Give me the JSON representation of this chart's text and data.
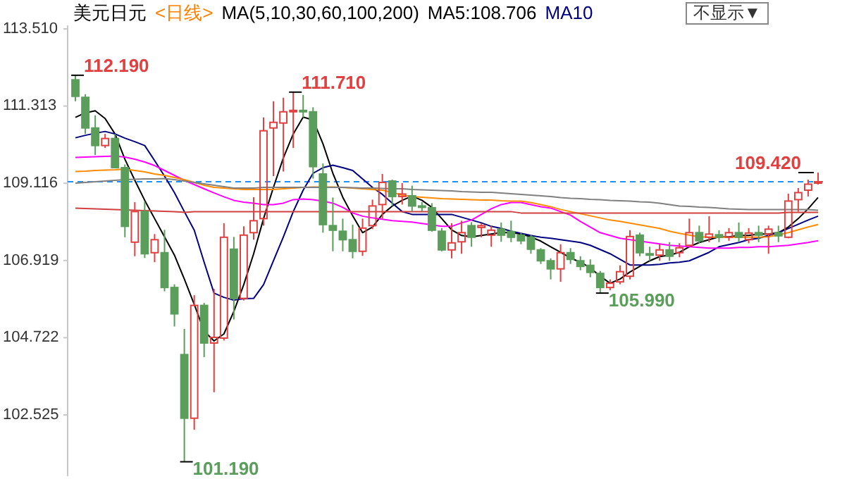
{
  "chart_data": {
    "type": "candlestick",
    "title": "美元日元",
    "subtitle": "<日线>",
    "annotations": [
      "MA(5,10,30,60,100,200)",
      "不显示▼"
    ],
    "value_labels": [
      "112.190",
      null,
      null,
      null,
      null,
      null,
      null,
      null,
      null,
      null,
      null,
      "101.190",
      null,
      null,
      null,
      null,
      null,
      null,
      null,
      null,
      null,
      null,
      "111.710",
      null,
      null,
      null,
      null,
      null,
      null,
      null,
      null,
      null,
      null,
      null,
      null,
      null,
      null,
      null,
      null,
      null,
      null,
      null,
      null,
      null,
      null,
      null,
      null,
      null,
      null,
      null,
      null,
      null,
      null,
      "105.990",
      null,
      null,
      null,
      null,
      null,
      null,
      null,
      null,
      null,
      null,
      null,
      null,
      null,
      null,
      null,
      null,
      null,
      null,
      null,
      null,
      null,
      "109.420"
    ],
    "categories": [
      null,
      null,
      null,
      null,
      null,
      null,
      null,
      null,
      null,
      null,
      null,
      null,
      null,
      null,
      null,
      null,
      null,
      null,
      null,
      null,
      null,
      null,
      null,
      null,
      null,
      null,
      null,
      null,
      null,
      null,
      null,
      null,
      null,
      null,
      null,
      null,
      null,
      null,
      null,
      null,
      null,
      null,
      null,
      null,
      null,
      null,
      null,
      null,
      null,
      null,
      null,
      null,
      null,
      null,
      null,
      null,
      null,
      null,
      null,
      null,
      null,
      null,
      null,
      null,
      null,
      null,
      null,
      null,
      null,
      null,
      null,
      null,
      null,
      null,
      null,
      null
    ],
    "ohlc": [
      [
        112.06,
        112.19,
        111.45,
        111.59
      ],
      [
        111.56,
        111.65,
        110.52,
        110.69
      ],
      [
        110.69,
        111.05,
        109.92,
        110.19
      ],
      [
        110.19,
        110.52,
        110.12,
        110.39
      ],
      [
        110.39,
        110.52,
        109.56,
        109.56
      ],
      [
        109.56,
        109.65,
        107.58,
        107.89
      ],
      [
        107.44,
        108.58,
        107.04,
        108.31
      ],
      [
        108.31,
        108.59,
        106.99,
        107.11
      ],
      [
        107.14,
        107.67,
        106.87,
        107.51
      ],
      [
        107.14,
        107.79,
        106.04,
        106.15
      ],
      [
        106.15,
        106.24,
        105.04,
        105.4
      ],
      [
        104.24,
        104.97,
        101.19,
        102.43
      ],
      [
        102.43,
        105.93,
        102.1,
        105.64
      ],
      [
        105.64,
        105.71,
        104.17,
        104.57
      ],
      [
        104.57,
        106.11,
        103.17,
        104.73
      ],
      [
        104.71,
        107.98,
        104.64,
        107.58
      ],
      [
        107.24,
        107.59,
        105.24,
        105.84
      ],
      [
        105.84,
        107.89,
        105.78,
        107.64
      ],
      [
        107.71,
        108.72,
        107.51,
        108.05
      ],
      [
        108.11,
        110.99,
        107.91,
        110.61
      ],
      [
        110.69,
        111.45,
        109.32,
        110.85
      ],
      [
        110.83,
        111.55,
        109.45,
        111.15
      ],
      [
        111.15,
        111.71,
        110.12,
        111.19
      ],
      [
        111.19,
        111.63,
        110.99,
        111.15
      ],
      [
        111.15,
        111.28,
        109.25,
        109.59
      ],
      [
        109.38,
        109.68,
        107.71,
        107.94
      ],
      [
        107.91,
        108.71,
        107.18,
        107.78
      ],
      [
        107.75,
        108.11,
        107.18,
        107.51
      ],
      [
        107.51,
        107.94,
        106.98,
        107.18
      ],
      [
        107.18,
        108.11,
        107.05,
        107.84
      ],
      [
        107.91,
        108.65,
        107.81,
        108.47
      ],
      [
        108.51,
        109.38,
        108.11,
        109.14
      ],
      [
        109.18,
        109.22,
        108.47,
        108.74
      ],
      [
        108.74,
        109.12,
        108.51,
        108.81
      ],
      [
        108.76,
        109.05,
        108.31,
        108.47
      ],
      [
        108.47,
        108.58,
        108.31,
        108.44
      ],
      [
        108.42,
        108.55,
        107.74,
        107.78
      ],
      [
        107.75,
        107.84,
        107.18,
        107.22
      ],
      [
        107.22,
        107.98,
        106.98,
        107.42
      ],
      [
        107.45,
        108.05,
        107.11,
        107.71
      ],
      [
        107.91,
        108.01,
        107.31,
        107.58
      ],
      [
        107.86,
        107.98,
        107.58,
        107.91
      ],
      [
        107.64,
        107.91,
        107.31,
        107.78
      ],
      [
        107.81,
        108.0,
        107.45,
        107.64
      ],
      [
        107.74,
        108.05,
        107.44,
        107.58
      ],
      [
        107.64,
        107.71,
        107.38,
        107.48
      ],
      [
        107.58,
        107.64,
        107.11,
        107.24
      ],
      [
        107.22,
        107.27,
        106.82,
        106.91
      ],
      [
        106.91,
        106.98,
        106.38,
        106.68
      ],
      [
        106.68,
        107.38,
        106.31,
        107.14
      ],
      [
        107.14,
        107.27,
        106.82,
        106.95
      ],
      [
        106.91,
        107.04,
        106.64,
        106.75
      ],
      [
        106.78,
        106.95,
        106.44,
        106.58
      ],
      [
        106.55,
        106.62,
        105.99,
        106.15
      ],
      [
        106.15,
        106.38,
        106.07,
        106.27
      ],
      [
        106.31,
        106.78,
        106.24,
        106.6
      ],
      [
        106.47,
        107.78,
        106.38,
        107.6
      ],
      [
        107.64,
        107.71,
        107.04,
        107.14
      ],
      [
        107.11,
        107.31,
        106.91,
        107.07
      ],
      [
        107.07,
        107.38,
        106.91,
        107.22
      ],
      [
        107.22,
        107.44,
        106.91,
        107.04
      ],
      [
        107.14,
        107.41,
        107.01,
        107.28
      ],
      [
        107.35,
        108.11,
        107.31,
        107.71
      ],
      [
        107.71,
        107.91,
        107.41,
        107.48
      ],
      [
        107.58,
        108.18,
        107.44,
        107.67
      ],
      [
        107.65,
        107.78,
        107.44,
        107.58
      ],
      [
        107.58,
        107.84,
        107.48,
        107.71
      ],
      [
        107.71,
        108.0,
        107.44,
        107.58
      ],
      [
        107.51,
        107.84,
        107.41,
        107.7
      ],
      [
        107.71,
        107.91,
        107.44,
        107.64
      ],
      [
        107.67,
        107.91,
        107.11,
        107.81
      ],
      [
        107.71,
        107.91,
        107.44,
        107.62
      ],
      [
        107.58,
        108.82,
        107.55,
        108.61
      ],
      [
        108.65,
        108.98,
        108.31,
        108.85
      ],
      [
        108.92,
        109.22,
        108.74,
        109.09
      ],
      [
        109.12,
        109.42,
        109.08,
        109.16
      ]
    ],
    "colors": [
      "#5b9e5b",
      "#5b9e5b",
      "#5b9e5b",
      "#e04040",
      "#5b9e5b",
      "#5b9e5b",
      "#e04040",
      "#5b9e5b",
      "#e04040",
      "#5b9e5b",
      "#5b9e5b",
      "#5b9e5b",
      "#e04040",
      "#5b9e5b",
      "#e04040",
      "#e04040",
      "#5b9e5b",
      "#e04040",
      "#e04040",
      "#e04040",
      "#e04040",
      "#e04040",
      "#e04040",
      "#5b9e5b",
      "#5b9e5b",
      "#5b9e5b",
      "#5b9e5b",
      "#5b9e5b",
      "#5b9e5b",
      "#e04040",
      "#e04040",
      "#e04040",
      "#5b9e5b",
      "#e04040",
      "#5b9e5b",
      "#5b9e5b",
      "#5b9e5b",
      "#5b9e5b",
      "#e04040",
      "#e04040",
      "#5b9e5b",
      "#e04040",
      "#e04040",
      "#5b9e5b",
      "#5b9e5b",
      "#5b9e5b",
      "#5b9e5b",
      "#5b9e5b",
      "#5b9e5b",
      "#e04040",
      "#5b9e5b",
      "#5b9e5b",
      "#5b9e5b",
      "#5b9e5b",
      "#e04040",
      "#e04040",
      "#e04040",
      "#5b9e5b",
      "#5b9e5b",
      "#e04040",
      "#5b9e5b",
      "#e04040",
      "#e04040",
      "#5b9e5b",
      "#e04040",
      "#5b9e5b",
      "#e04040",
      "#5b9e5b",
      "#e04040",
      "#5b9e5b",
      "#e04040",
      "#5b9e5b",
      "#e04040",
      "#e04040",
      "#e04040",
      "#e04040"
    ],
    "series": [
      {
        "type": "line",
        "name": "MA5:108.706",
        "color": "#000000",
        "values": [
          110.99,
          111.12,
          111.18,
          110.96,
          110.52,
          109.8,
          109.2,
          108.63,
          108.11,
          107.59,
          107.07,
          106.39,
          105.67,
          104.91,
          104.63,
          104.83,
          105.47,
          106.23,
          107.11,
          108.11,
          109.0,
          109.84,
          110.52,
          111.0,
          110.92,
          110.24,
          109.4,
          108.72,
          108.19,
          107.71,
          107.87,
          108.23,
          108.47,
          108.63,
          108.75,
          108.63,
          108.43,
          108.11,
          107.79,
          107.63,
          107.59,
          107.63,
          107.67,
          107.71,
          107.71,
          107.67,
          107.59,
          107.47,
          107.31,
          107.15,
          106.99,
          106.87,
          106.71,
          106.47,
          106.27,
          106.39,
          106.59,
          106.75,
          106.91,
          107.03,
          107.07,
          107.15,
          107.31,
          107.43,
          107.51,
          107.59,
          107.59,
          107.63,
          107.63,
          107.67,
          107.67,
          107.71,
          107.87,
          108.11,
          108.39,
          108.71
        ]
      },
      {
        "type": "line",
        "name": "MA10",
        "color": "#000080",
        "values": [
          110.41,
          110.48,
          110.54,
          110.59,
          110.52,
          110.4,
          110.3,
          110.19,
          109.76,
          109.32,
          108.85,
          108.31,
          107.78,
          106.87,
          105.99,
          105.87,
          105.79,
          105.83,
          105.84,
          106.23,
          106.91,
          107.59,
          108.31,
          108.92,
          109.4,
          109.56,
          109.63,
          109.56,
          109.48,
          109.24,
          109.0,
          108.8,
          108.55,
          108.31,
          108.23,
          108.23,
          108.23,
          108.23,
          108.23,
          108.15,
          108.07,
          107.99,
          107.89,
          107.83,
          107.75,
          107.69,
          107.63,
          107.58,
          107.55,
          107.51,
          107.47,
          107.43,
          107.35,
          107.23,
          107.11,
          106.95,
          106.79,
          106.79,
          106.79,
          106.81,
          106.85,
          106.87,
          106.91,
          107.03,
          107.15,
          107.31,
          107.37,
          107.43,
          107.51,
          107.55,
          107.63,
          107.71,
          107.83,
          107.95,
          108.07,
          108.18
        ]
      },
      {
        "type": "line",
        "color": "#ff00ff",
        "values": [
          109.85,
          109.86,
          109.87,
          109.88,
          109.89,
          109.86,
          109.8,
          109.72,
          109.62,
          109.48,
          109.34,
          109.2,
          109.08,
          108.96,
          108.84,
          108.73,
          108.63,
          108.58,
          108.55,
          108.51,
          108.51,
          108.55,
          108.65,
          108.67,
          108.65,
          108.61,
          108.55,
          108.43,
          108.27,
          108.18,
          108.13,
          108.09,
          108.05,
          108.03,
          108.01,
          107.97,
          107.93,
          107.89,
          107.89,
          107.99,
          108.07,
          108.23,
          108.39,
          108.51,
          108.57,
          108.57,
          108.51,
          108.45,
          108.41,
          108.31,
          108.21,
          108.03,
          107.87,
          107.71,
          107.63,
          107.55,
          107.51,
          107.47,
          107.43,
          107.39,
          107.35,
          107.33,
          107.31,
          107.29,
          107.27,
          107.27,
          107.27,
          107.29,
          107.29,
          107.31,
          107.31,
          107.33,
          107.35,
          107.39,
          107.43,
          107.48
        ]
      },
      {
        "type": "line",
        "color": "#ff8c00",
        "values": [
          109.45,
          109.46,
          109.48,
          109.49,
          109.5,
          109.52,
          109.48,
          109.44,
          109.38,
          109.34,
          109.28,
          109.22,
          109.14,
          109.06,
          109.0,
          108.98,
          108.96,
          108.94,
          108.94,
          108.94,
          108.94,
          108.96,
          108.98,
          109.0,
          109.01,
          109.01,
          109.01,
          109.0,
          108.98,
          108.96,
          108.94,
          108.92,
          108.86,
          108.78,
          108.74,
          108.72,
          108.7,
          108.68,
          108.67,
          108.66,
          108.65,
          108.64,
          108.64,
          108.62,
          108.61,
          108.61,
          108.57,
          108.51,
          108.45,
          108.37,
          108.31,
          108.25,
          108.19,
          108.13,
          108.07,
          108.03,
          107.98,
          107.93,
          107.88,
          107.83,
          107.75,
          107.69,
          107.64,
          107.59,
          107.58,
          107.58,
          107.58,
          107.58,
          107.58,
          107.58,
          107.59,
          107.65,
          107.71,
          107.79,
          107.87,
          107.94
        ]
      },
      {
        "type": "line",
        "color": "#808080",
        "values": [
          109.12,
          109.14,
          109.16,
          109.18,
          109.2,
          109.22,
          109.23,
          109.24,
          109.24,
          109.25,
          109.22,
          109.18,
          109.14,
          109.1,
          109.06,
          109.02,
          108.98,
          108.98,
          108.98,
          109.0,
          109.0,
          109.0,
          109.0,
          109.0,
          109.0,
          109.0,
          109.0,
          109.0,
          108.99,
          108.98,
          108.98,
          108.97,
          108.96,
          108.96,
          108.94,
          108.93,
          108.92,
          108.91,
          108.9,
          108.88,
          108.87,
          108.86,
          108.86,
          108.84,
          108.82,
          108.8,
          108.78,
          108.76,
          108.74,
          108.71,
          108.69,
          108.68,
          108.66,
          108.65,
          108.63,
          108.62,
          108.61,
          108.59,
          108.58,
          108.55,
          108.51,
          108.47,
          108.46,
          108.44,
          108.43,
          108.41,
          108.39,
          108.38,
          108.37,
          108.37,
          108.37,
          108.37,
          108.37,
          108.37,
          108.37,
          108.35
        ]
      },
      {
        "type": "line",
        "color": "#d04040",
        "values": [
          108.41,
          108.4,
          108.39,
          108.38,
          108.37,
          108.36,
          108.35,
          108.34,
          108.33,
          108.32,
          108.31,
          108.29,
          108.31,
          108.31,
          108.31,
          108.31,
          108.31,
          108.31,
          108.31,
          108.31,
          108.31,
          108.31,
          108.31,
          108.31,
          108.31,
          108.31,
          108.31,
          108.31,
          108.31,
          108.31,
          108.31,
          108.31,
          108.31,
          108.31,
          108.31,
          108.31,
          108.31,
          108.31,
          108.31,
          108.31,
          108.31,
          108.31,
          108.31,
          108.31,
          108.31,
          108.27,
          108.27,
          108.27,
          108.27,
          108.27,
          108.27,
          108.27,
          108.27,
          108.27,
          108.27,
          108.27,
          108.27,
          108.27,
          108.27,
          108.27,
          108.27,
          108.27,
          108.27,
          108.27,
          108.27,
          108.27,
          108.27,
          108.27,
          108.27,
          108.27,
          108.27,
          108.27,
          108.29,
          108.29,
          108.29,
          108.29
        ]
      }
    ],
    "ref_lines": [
      {
        "axis": "y",
        "value": 109.16,
        "color": "#1e90ff",
        "line_style": "dashed"
      }
    ],
    "ylim": [
      100.78,
      113.61
    ],
    "yticks": [
      {
        "value": 113.51,
        "label": "113.510"
      },
      {
        "value": 111.313,
        "label": "111.313"
      },
      {
        "value": 109.116,
        "label": "109.116"
      },
      {
        "value": 106.919,
        "label": "106.919"
      },
      {
        "value": 104.722,
        "label": "104.722"
      },
      {
        "value": 102.525,
        "label": "102.525"
      }
    ]
  }
}
